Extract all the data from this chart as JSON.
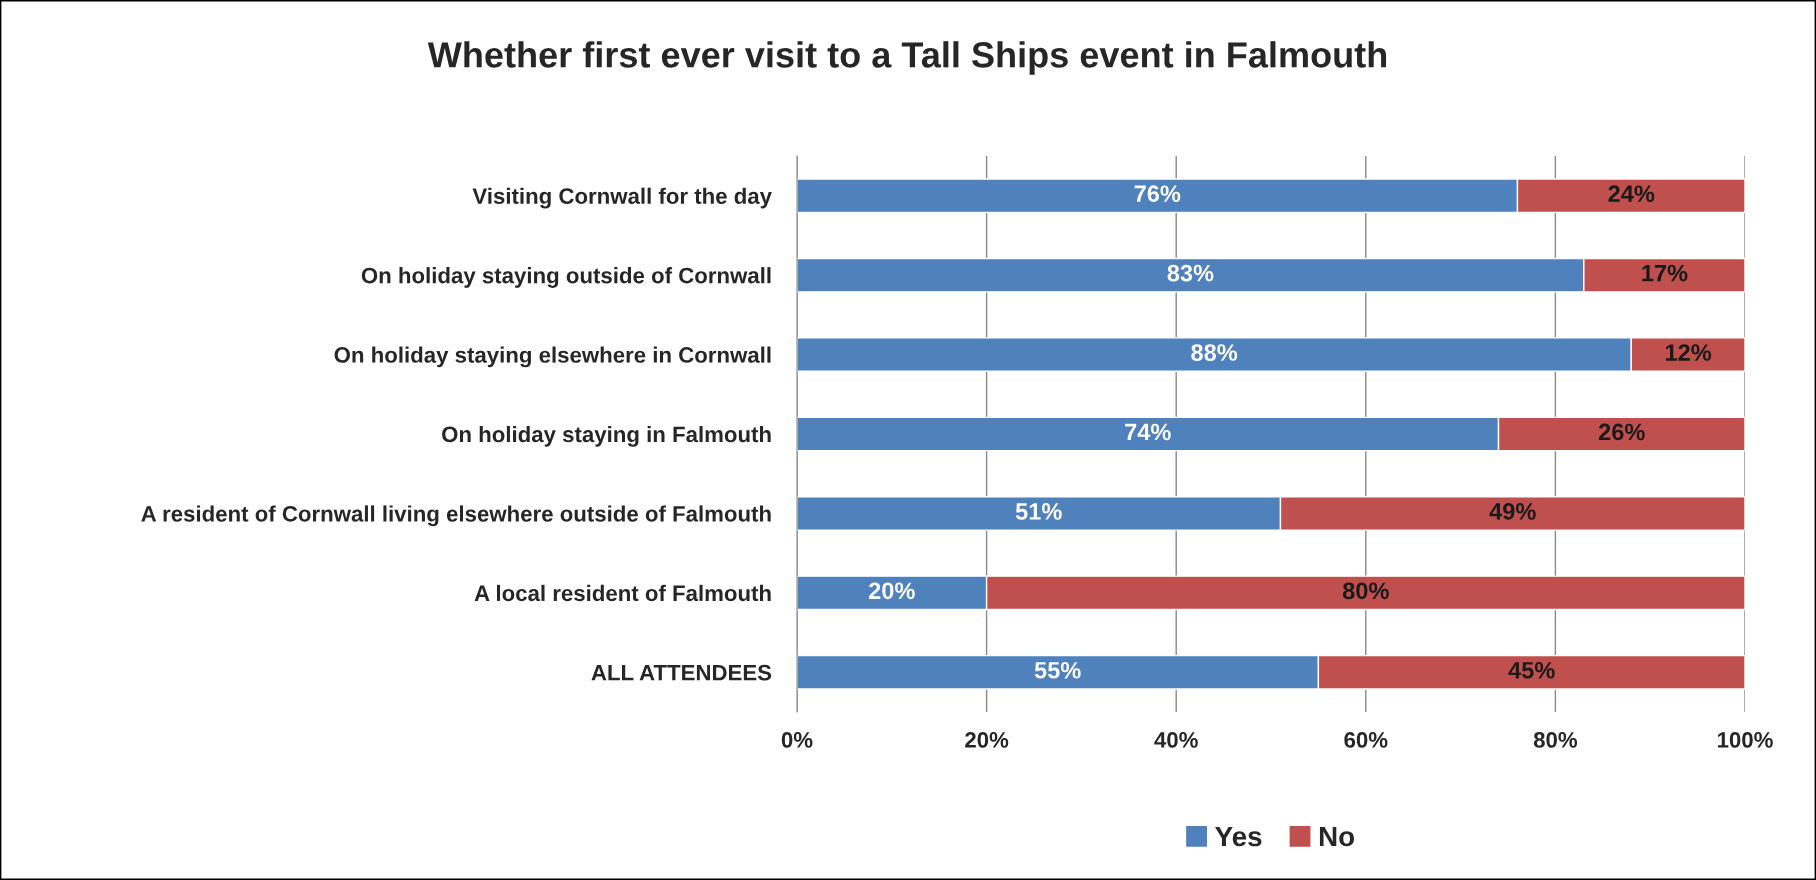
{
  "chart_data": {
    "type": "bar",
    "orientation": "horizontal",
    "stacked": true,
    "title": "Whether first ever visit to a Tall Ships event in Falmouth",
    "categories": [
      "Visiting Cornwall for the day",
      "On holiday staying outside of Cornwall",
      "On holiday staying elsewhere in Cornwall",
      "On holiday staying in Falmouth",
      "A resident of Cornwall living elsewhere outside of Falmouth",
      "A local resident of Falmouth",
      "ALL ATTENDEES"
    ],
    "series": [
      {
        "name": "Yes",
        "color": "#4f81bd",
        "values": [
          76,
          83,
          88,
          74,
          51,
          20,
          55
        ],
        "value_labels": [
          "76%",
          "83%",
          "88%",
          "74%",
          "51%",
          "20%",
          "55%"
        ]
      },
      {
        "name": "No",
        "color": "#c0504d",
        "values": [
          24,
          17,
          12,
          26,
          49,
          80,
          45
        ],
        "value_labels": [
          "24%",
          "17%",
          "12%",
          "26%",
          "49%",
          "80%",
          "45%"
        ]
      }
    ],
    "xlim": [
      0,
      100
    ],
    "xticks": [
      {
        "value": 0,
        "label": "0%"
      },
      {
        "value": 20,
        "label": "20%"
      },
      {
        "value": 40,
        "label": "40%"
      },
      {
        "value": 60,
        "label": "60%"
      },
      {
        "value": 80,
        "label": "80%"
      },
      {
        "value": 100,
        "label": "100%"
      }
    ],
    "grid": "x",
    "legend": "bottom"
  }
}
